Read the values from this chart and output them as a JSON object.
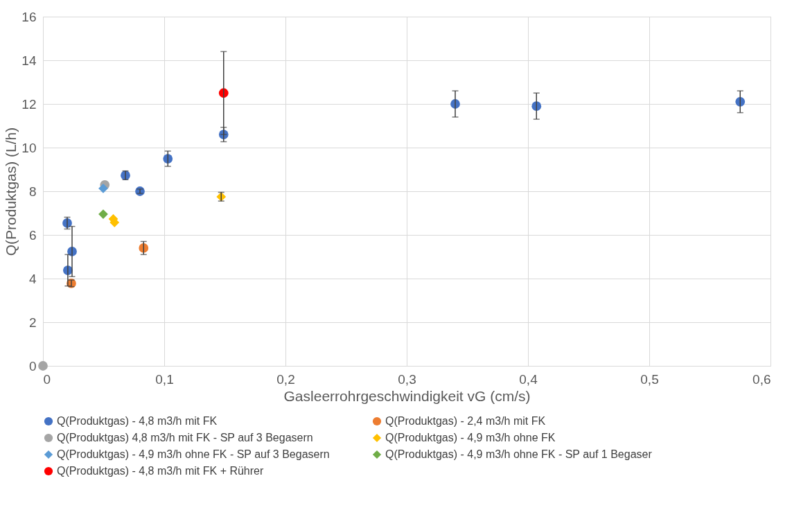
{
  "chart_data": {
    "type": "scatter",
    "xlabel": "Gasleerrohrgeschwindigkeit vG (cm/s)",
    "ylabel": "Q(Produktgas) (L/h)",
    "xlim": [
      0,
      0.6
    ],
    "xticks": [
      0,
      {
        "value": 0.1,
        "label": "0,1"
      },
      {
        "value": 0.2,
        "label": "0,2"
      },
      {
        "value": 0.3,
        "label": "0,3"
      },
      {
        "value": 0.4,
        "label": "0,4"
      },
      {
        "value": 0.5,
        "label": "0,5"
      },
      {
        "value": 0.6,
        "label": "0,6"
      }
    ],
    "ylim": [
      0,
      16
    ],
    "yticks": [
      0,
      2,
      4,
      6,
      8,
      10,
      12,
      14,
      16
    ],
    "grid": true,
    "legend": "bottom",
    "series": [
      {
        "name": "Q(Produktgas) - 4,8 m3/h mit FK",
        "color": "#4472c4",
        "marker": "circle",
        "x": [
          0.02,
          0.024,
          0.0205,
          0.068,
          0.08,
          0.103,
          0.149,
          0.34,
          0.407,
          0.575
        ],
        "values": [
          6.54,
          5.24,
          4.38,
          8.73,
          8.0,
          9.49,
          10.6,
          12.0,
          11.9,
          12.1
        ],
        "errors": [
          0.27,
          1.15,
          0.72,
          0.2,
          0.1,
          0.35,
          0.33,
          0.6,
          0.6,
          0.5
        ]
      },
      {
        "name": "Q(Produktgas) - 2,4 m3/h mit FK",
        "color": "#ed7d31",
        "marker": "circle",
        "x": [
          0.0234,
          0.083
        ],
        "values": [
          3.78,
          5.4
        ],
        "errors": [
          0.15,
          0.3
        ]
      },
      {
        "name": "Q(Produktgas) 4,8 m3/h mit FK - SP auf 3 Begasern",
        "color": "#a5a5a5",
        "marker": "circle",
        "x": [
          0,
          0.051
        ],
        "values": [
          0,
          8.29
        ]
      },
      {
        "name": "Q(Produktgas) - 4,9 m3/h ohne FK",
        "color": "#ffc000",
        "marker": "diamond",
        "x": [
          0.058,
          0.059,
          0.147
        ],
        "values": [
          6.73,
          6.57,
          7.75
        ],
        "errors": [
          null,
          null,
          0.2
        ]
      },
      {
        "name": "Q(Produktgas) - 4,9 m3/h ohne FK - SP auf 3 Begasern",
        "color": "#5b9bd5",
        "marker": "diamond",
        "x": [
          0.0497
        ],
        "values": [
          8.13
        ]
      },
      {
        "name": "Q(Produktgas) - 4,9 m3/h ohne FK - SP auf 1 Begaser",
        "color": "#70ad47",
        "marker": "diamond",
        "x": [
          0.0497
        ],
        "values": [
          6.95
        ]
      },
      {
        "name": "Q(Produktgas) - 4,8 m3/h mit FK + Rührer",
        "color": "#ff0000",
        "marker": "circle",
        "x": [
          0.149
        ],
        "values": [
          12.5
        ],
        "errors": [
          1.9
        ]
      }
    ]
  }
}
